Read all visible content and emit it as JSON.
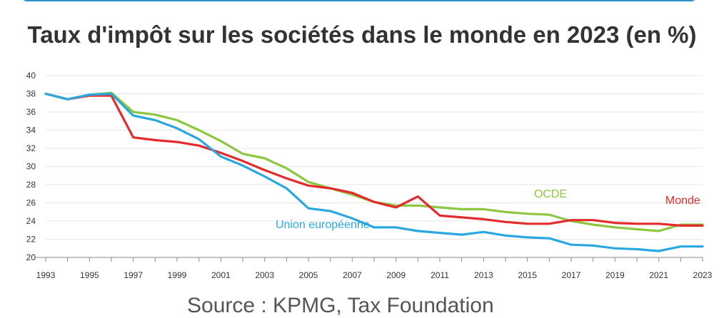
{
  "page": {
    "source_text": "Source : KPMG, Tax Foundation"
  },
  "chart_data": {
    "type": "line",
    "title": "Taux d'impôt sur les sociétés dans le monde en 2023 (en %)",
    "xlabel": "",
    "ylabel": "",
    "ylim": [
      20,
      40
    ],
    "xlim": [
      1993,
      2023
    ],
    "y_ticks": [
      20,
      22,
      24,
      26,
      28,
      30,
      32,
      34,
      36,
      38,
      40
    ],
    "x_ticks": [
      1993,
      1995,
      1997,
      1999,
      2001,
      2003,
      2005,
      2007,
      2009,
      2011,
      2013,
      2015,
      2017,
      2019,
      2021,
      2023
    ],
    "grid": true,
    "x": [
      1993,
      1994,
      1995,
      1996,
      1997,
      1998,
      1999,
      2000,
      2001,
      2002,
      2003,
      2004,
      2005,
      2006,
      2007,
      2008,
      2009,
      2010,
      2011,
      2012,
      2013,
      2014,
      2015,
      2016,
      2017,
      2018,
      2019,
      2020,
      2021,
      2022,
      2023
    ],
    "series": [
      {
        "name": "OCDE",
        "color": "#8dc63f",
        "values": [
          38.0,
          37.4,
          37.9,
          38.1,
          36.0,
          35.7,
          35.1,
          34.0,
          32.8,
          31.4,
          30.9,
          29.8,
          28.3,
          27.6,
          26.9,
          26.1,
          25.7,
          25.7,
          25.5,
          25.3,
          25.3,
          25.0,
          24.8,
          24.7,
          24.0,
          23.6,
          23.3,
          23.1,
          22.9,
          23.6,
          23.6
        ]
      },
      {
        "name": "Monde",
        "color": "#e32b2b",
        "values": [
          38.0,
          37.4,
          37.8,
          37.8,
          33.2,
          32.9,
          32.7,
          32.3,
          31.5,
          30.6,
          29.6,
          28.7,
          27.9,
          27.6,
          27.1,
          26.1,
          25.5,
          26.7,
          24.6,
          24.4,
          24.2,
          23.9,
          23.7,
          23.7,
          24.1,
          24.1,
          23.8,
          23.7,
          23.7,
          23.5,
          23.5
        ]
      },
      {
        "name": "Union européenne",
        "color": "#29a8e0",
        "values": [
          38.0,
          37.4,
          37.9,
          38.0,
          35.6,
          35.1,
          34.2,
          33.0,
          31.1,
          30.1,
          28.9,
          27.6,
          25.4,
          25.1,
          24.3,
          23.3,
          23.3,
          22.9,
          22.7,
          22.5,
          22.8,
          22.4,
          22.2,
          22.1,
          21.4,
          21.3,
          21.0,
          20.9,
          20.7,
          21.2,
          21.2
        ]
      }
    ],
    "annotations": [
      {
        "text": "OCDE",
        "x": 2015.3,
        "y": 26.6,
        "color": "#8dc63f"
      },
      {
        "text": "Monde",
        "x": 2021.3,
        "y": 25.9,
        "color": "#e32b2b"
      },
      {
        "text": "Union européenne",
        "x": 2003.5,
        "y": 23.2,
        "color": "#29a8e0"
      }
    ]
  }
}
